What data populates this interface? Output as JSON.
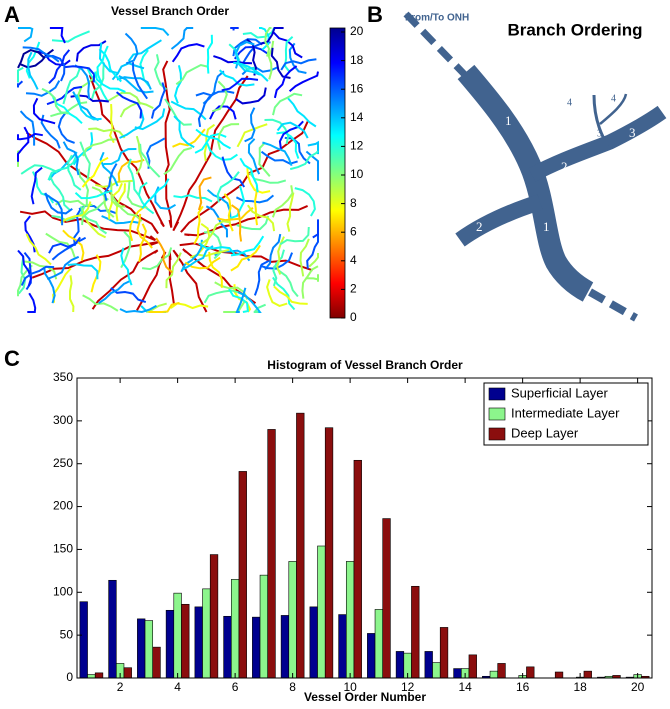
{
  "panels": {
    "labels": [
      "A",
      "B",
      "C"
    ]
  },
  "diagram": {
    "title": "Branch Ordering",
    "source": "From/To ONH",
    "branch_labels": [
      "1",
      "1",
      "2",
      "2",
      "3",
      "3",
      "4",
      "4"
    ]
  },
  "chart_data": [
    {
      "type": "image",
      "title": "Vessel Branch Order",
      "colorbar": {
        "lim": [
          0,
          20
        ],
        "ticks": [
          0,
          2,
          4,
          6,
          8,
          10,
          12,
          14,
          16,
          18,
          20
        ]
      }
    },
    {
      "type": "bar",
      "title": "Histogram of Vessel Branch Order",
      "x_label": "Vessel Order Number",
      "x": [
        1,
        2,
        3,
        4,
        5,
        6,
        7,
        8,
        9,
        10,
        11,
        12,
        13,
        14,
        15,
        16,
        17,
        18,
        19,
        20
      ],
      "xlim": [
        0.5,
        20.5
      ],
      "xticks": [
        2,
        4,
        6,
        8,
        10,
        12,
        14,
        16,
        18,
        20
      ],
      "ylim": [
        0,
        350
      ],
      "yticks": [
        0,
        50,
        100,
        150,
        200,
        250,
        300,
        350
      ],
      "legend": "northeast",
      "series": [
        {
          "name": "Superficial Layer",
          "color": "#00008f",
          "values": [
            89,
            114,
            69,
            79,
            83,
            72,
            71,
            73,
            83,
            74,
            52,
            31,
            31,
            11,
            2,
            0,
            0,
            0,
            1,
            1
          ]
        },
        {
          "name": "Intermediate Layer",
          "color": "#8cf58c",
          "values": [
            4,
            17,
            67,
            99,
            104,
            115,
            120,
            136,
            154,
            136,
            80,
            29,
            18,
            11,
            8,
            3,
            0,
            1,
            2,
            4
          ]
        },
        {
          "name": "Deep Layer",
          "color": "#8b0e0e",
          "values": [
            6,
            12,
            36,
            86,
            144,
            241,
            290,
            309,
            292,
            254,
            186,
            107,
            59,
            27,
            17,
            13,
            7,
            8,
            3,
            2
          ]
        }
      ]
    }
  ]
}
